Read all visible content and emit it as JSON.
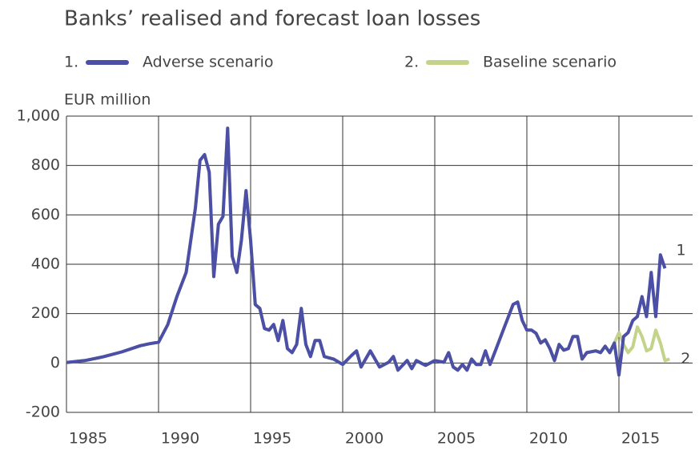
{
  "chart_data": {
    "type": "line",
    "title": "Banks’ realised and forecast loan losses",
    "y_label": "EUR million",
    "x": [
      1985,
      1986,
      1987,
      1988,
      1989,
      1989.5,
      1990,
      1990.5,
      1991,
      1991.5,
      1992,
      1992.25,
      1992.5,
      1992.75,
      1993,
      1993.25,
      1993.5,
      1993.75,
      1994,
      1994.25,
      1994.5,
      1994.75,
      1995,
      1995.25,
      1995.5,
      1995.75,
      1996,
      1996.25,
      1996.5,
      1996.75,
      1997,
      1997.25,
      1997.5,
      1997.75,
      1998,
      1998.25,
      1998.5,
      1998.75,
      1999,
      1999.5,
      2000,
      2000.5,
      2000.75,
      2001,
      2001.5,
      2002,
      2002.5,
      2002.75,
      2003,
      2003.5,
      2003.75,
      2004,
      2004.5,
      2005,
      2005.5,
      2005.75,
      2006,
      2006.25,
      2006.5,
      2006.75,
      2007,
      2007.25,
      2007.5,
      2007.75,
      2008,
      2008.25,
      2008.75,
      2009.25,
      2009.5,
      2009.75,
      2010,
      2010.25,
      2010.5,
      2010.75,
      2011,
      2011.25,
      2011.5,
      2011.75,
      2012,
      2012.25,
      2012.5,
      2012.75,
      2013,
      2013.25,
      2013.75,
      2014,
      2014.25,
      2014.5,
      2014.75,
      2015,
      2015.25,
      2015.5,
      2015.75,
      2016,
      2016.25,
      2016.5,
      2016.75,
      2017,
      2017.25,
      2017.5,
      2017.75
    ],
    "series": [
      {
        "name": "Adverse scenario",
        "legend_prefix": "1.",
        "annotation": "1",
        "color": "#4b4fa6",
        "values": [
          2,
          10,
          25,
          45,
          70,
          78,
          84,
          155,
          270,
          367,
          627,
          821,
          844,
          773,
          350,
          562,
          594,
          951,
          432,
          367,
          497,
          698,
          497,
          237,
          221,
          140,
          133,
          156,
          91,
          172,
          58,
          42,
          75,
          221,
          75,
          26,
          91,
          91,
          26,
          16,
          -6,
          32,
          49,
          -16,
          49,
          -16,
          3,
          26,
          -29,
          10,
          -23,
          10,
          -10,
          10,
          3,
          42,
          -16,
          -29,
          -6,
          -29,
          16,
          -6,
          -6,
          49,
          -6,
          42,
          140,
          237,
          247,
          172,
          133,
          133,
          120,
          81,
          94,
          58,
          10,
          75,
          52,
          58,
          107,
          107,
          16,
          42,
          49,
          42,
          68,
          42,
          81,
          -49,
          107,
          123,
          172,
          188,
          269,
          188,
          367,
          188,
          438,
          383,
          null
        ]
      },
      {
        "name": "Baseline scenario",
        "legend_prefix": "2.",
        "annotation": "2",
        "color": "#c3d38a",
        "values": [
          2,
          10,
          25,
          45,
          70,
          78,
          84,
          155,
          270,
          367,
          627,
          821,
          844,
          773,
          350,
          562,
          594,
          951,
          432,
          367,
          497,
          698,
          497,
          237,
          221,
          140,
          133,
          156,
          91,
          172,
          58,
          42,
          75,
          221,
          75,
          26,
          91,
          91,
          26,
          16,
          -6,
          32,
          49,
          -16,
          49,
          -16,
          3,
          26,
          -29,
          10,
          -23,
          10,
          -10,
          10,
          3,
          42,
          -16,
          -29,
          -6,
          -29,
          16,
          -6,
          -6,
          49,
          -6,
          42,
          140,
          237,
          247,
          172,
          133,
          133,
          120,
          81,
          94,
          58,
          10,
          75,
          52,
          58,
          107,
          107,
          16,
          42,
          49,
          42,
          68,
          42,
          81,
          123,
          75,
          42,
          65,
          146,
          107,
          49,
          58,
          133,
          81,
          10,
          16
        ]
      }
    ],
    "xlim": [
      1985,
      2019
    ],
    "xticks": [
      1985,
      1990,
      1995,
      2000,
      2005,
      2010,
      2015
    ],
    "ylim": [
      -200,
      1000
    ],
    "yticks": [
      -200,
      0,
      200,
      400,
      600,
      800,
      {
        "value": 1000,
        "label": "1,000"
      }
    ],
    "grid": true
  }
}
